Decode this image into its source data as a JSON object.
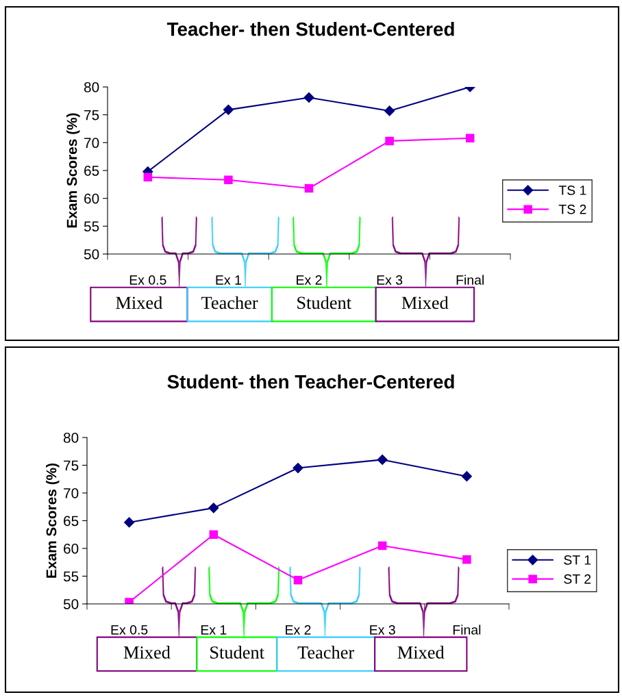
{
  "chart_data": [
    {
      "type": "line",
      "title": "Teacher- then Student-Centered",
      "ylabel": "Exam Scores (%)",
      "categories": [
        "Ex 0.5",
        "Ex 1",
        "Ex 2",
        "Ex 3",
        "Final"
      ],
      "ylim": [
        50,
        80
      ],
      "yticks": [
        50,
        55,
        60,
        65,
        70,
        75,
        80
      ],
      "legend": "right",
      "grid": false,
      "series": [
        {
          "name": "TS 1",
          "color": "#000080",
          "marker": "diamond",
          "values": [
            64.8,
            75.9,
            78.1,
            75.7,
            80
          ]
        },
        {
          "name": "TS 2",
          "color": "#ff00ff",
          "marker": "square",
          "values": [
            63.8,
            63.3,
            61.8,
            70.3,
            70.8
          ]
        }
      ],
      "annotations": [
        "Mixed",
        "Teacher",
        "Student",
        "Mixed"
      ]
    },
    {
      "type": "line",
      "title": "Student- then Teacher-Centered",
      "ylabel": "Exam Scores (%)",
      "categories": [
        "Ex 0.5",
        "Ex 1",
        "Ex 2",
        "Ex 3",
        "Final"
      ],
      "ylim": [
        50,
        80
      ],
      "yticks": [
        50,
        55,
        60,
        65,
        70,
        75,
        80
      ],
      "legend": "right",
      "grid": false,
      "series": [
        {
          "name": "ST 1",
          "color": "#000080",
          "marker": "diamond",
          "values": [
            64.7,
            67.3,
            74.5,
            76.0,
            73.0
          ]
        },
        {
          "name": "ST 2",
          "color": "#ff00ff",
          "marker": "square",
          "values": [
            50.3,
            62.5,
            54.3,
            60.5,
            58.0
          ]
        }
      ],
      "annotations": [
        "Mixed",
        "Student",
        "Teacher",
        "Mixed"
      ]
    }
  ]
}
